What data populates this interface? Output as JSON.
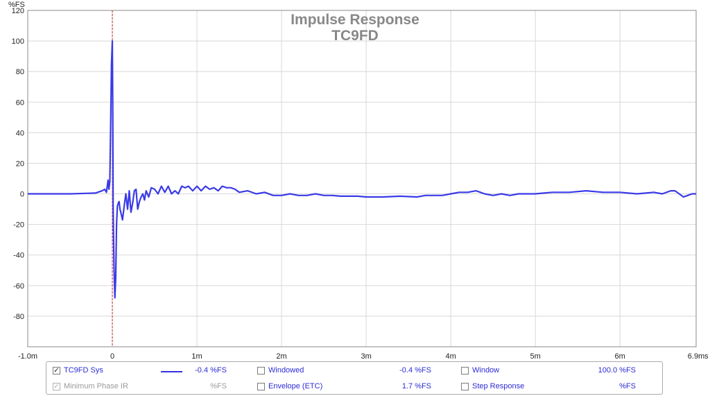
{
  "chart_data": {
    "type": "line",
    "title": "Impulse Response",
    "subtitle": "TC9FD",
    "ylabel": "%FS",
    "xunit": "s",
    "xlim": [
      -1.0,
      6.9
    ],
    "ylim": [
      -100,
      120
    ],
    "grid": true,
    "x_ticks": [
      {
        "value": -1.0,
        "label": "-1.0m"
      },
      {
        "value": 0,
        "label": "0"
      },
      {
        "value": 1,
        "label": "1m"
      },
      {
        "value": 2,
        "label": "2m"
      },
      {
        "value": 3,
        "label": "3m"
      },
      {
        "value": 4,
        "label": "4m"
      },
      {
        "value": 5,
        "label": "5m"
      },
      {
        "value": 6,
        "label": "6m"
      },
      {
        "value": 6.9,
        "label": "6.9m"
      }
    ],
    "y_ticks": [
      {
        "value": 120,
        "label": "120"
      },
      {
        "value": 100,
        "label": "100"
      },
      {
        "value": 80,
        "label": "80"
      },
      {
        "value": 60,
        "label": "60"
      },
      {
        "value": 40,
        "label": "40"
      },
      {
        "value": 20,
        "label": "20"
      },
      {
        "value": 0,
        "label": "0"
      },
      {
        "value": -20,
        "label": "-20"
      },
      {
        "value": -40,
        "label": "-40"
      },
      {
        "value": -60,
        "label": "-60"
      },
      {
        "value": -80,
        "label": "-80"
      }
    ],
    "marker_x": 0,
    "series": [
      {
        "name": "TC9FD Sys",
        "color": "#3a3ae8",
        "x": [
          -1.0,
          -0.5,
          -0.2,
          -0.12,
          -0.09,
          -0.07,
          -0.06,
          -0.05,
          -0.04,
          -0.03,
          -0.02,
          -0.01,
          0.0,
          0.005,
          0.01,
          0.02,
          0.03,
          0.04,
          0.05,
          0.06,
          0.07,
          0.08,
          0.09,
          0.1,
          0.12,
          0.14,
          0.16,
          0.18,
          0.2,
          0.22,
          0.24,
          0.26,
          0.28,
          0.3,
          0.32,
          0.34,
          0.36,
          0.38,
          0.4,
          0.43,
          0.46,
          0.5,
          0.54,
          0.58,
          0.62,
          0.66,
          0.7,
          0.74,
          0.78,
          0.82,
          0.86,
          0.9,
          0.95,
          1.0,
          1.05,
          1.1,
          1.15,
          1.2,
          1.25,
          1.3,
          1.35,
          1.4,
          1.45,
          1.5,
          1.6,
          1.7,
          1.8,
          1.9,
          2.0,
          2.1,
          2.2,
          2.3,
          2.4,
          2.5,
          2.6,
          2.7,
          2.8,
          2.9,
          3.0,
          3.2,
          3.4,
          3.6,
          3.7,
          3.8,
          3.9,
          4.0,
          4.1,
          4.2,
          4.3,
          4.35,
          4.4,
          4.5,
          4.6,
          4.7,
          4.8,
          5.0,
          5.1,
          5.2,
          5.4,
          5.6,
          5.8,
          6.0,
          6.2,
          6.4,
          6.5,
          6.6,
          6.65,
          6.7,
          6.75,
          6.8,
          6.85,
          6.9
        ],
        "y": [
          0,
          0,
          0.5,
          2,
          3,
          1,
          5,
          9,
          3,
          8,
          45,
          85,
          100,
          60,
          -10,
          -50,
          -68,
          -55,
          -20,
          -8,
          -6,
          -5,
          -10,
          -12,
          -17,
          -8,
          0,
          -10,
          2,
          -12,
          -6,
          2,
          3,
          -10,
          -5,
          -2,
          0,
          -4,
          2,
          -2,
          4,
          3,
          0,
          5,
          1,
          5,
          0,
          2,
          0,
          5,
          4,
          5,
          2,
          5,
          2,
          5,
          3,
          4,
          2,
          5,
          4,
          4,
          3,
          1,
          2,
          0,
          1,
          -1,
          -1,
          0,
          -1,
          -1,
          0,
          -1,
          -1,
          -1.5,
          -1.5,
          -1.5,
          -2,
          -2,
          -1.5,
          -2,
          -1,
          -1,
          -1,
          0,
          1,
          1,
          2,
          1,
          0,
          -1,
          0,
          -1,
          0,
          0,
          0.5,
          1,
          1,
          2,
          1,
          1,
          0,
          1,
          0,
          2,
          2,
          0,
          -2,
          -1,
          0,
          0
        ]
      }
    ]
  },
  "legend": {
    "rows": [
      [
        {
          "label": "TC9FD Sys",
          "checked": true,
          "enabled": true,
          "value": "-0.4 %FS",
          "swatch": true
        },
        {
          "label": "Windowed",
          "checked": false,
          "enabled": true,
          "value": "-0.4 %FS"
        },
        {
          "label": "Window",
          "checked": false,
          "enabled": true,
          "value": "100.0 %FS"
        }
      ],
      [
        {
          "label": "Minimum Phase IR",
          "checked": true,
          "enabled": false,
          "value": "%FS"
        },
        {
          "label": "Envelope (ETC)",
          "checked": false,
          "enabled": true,
          "value": "1.7 %FS"
        },
        {
          "label": "Step Response",
          "checked": false,
          "enabled": true,
          "value": "%FS"
        }
      ]
    ]
  }
}
